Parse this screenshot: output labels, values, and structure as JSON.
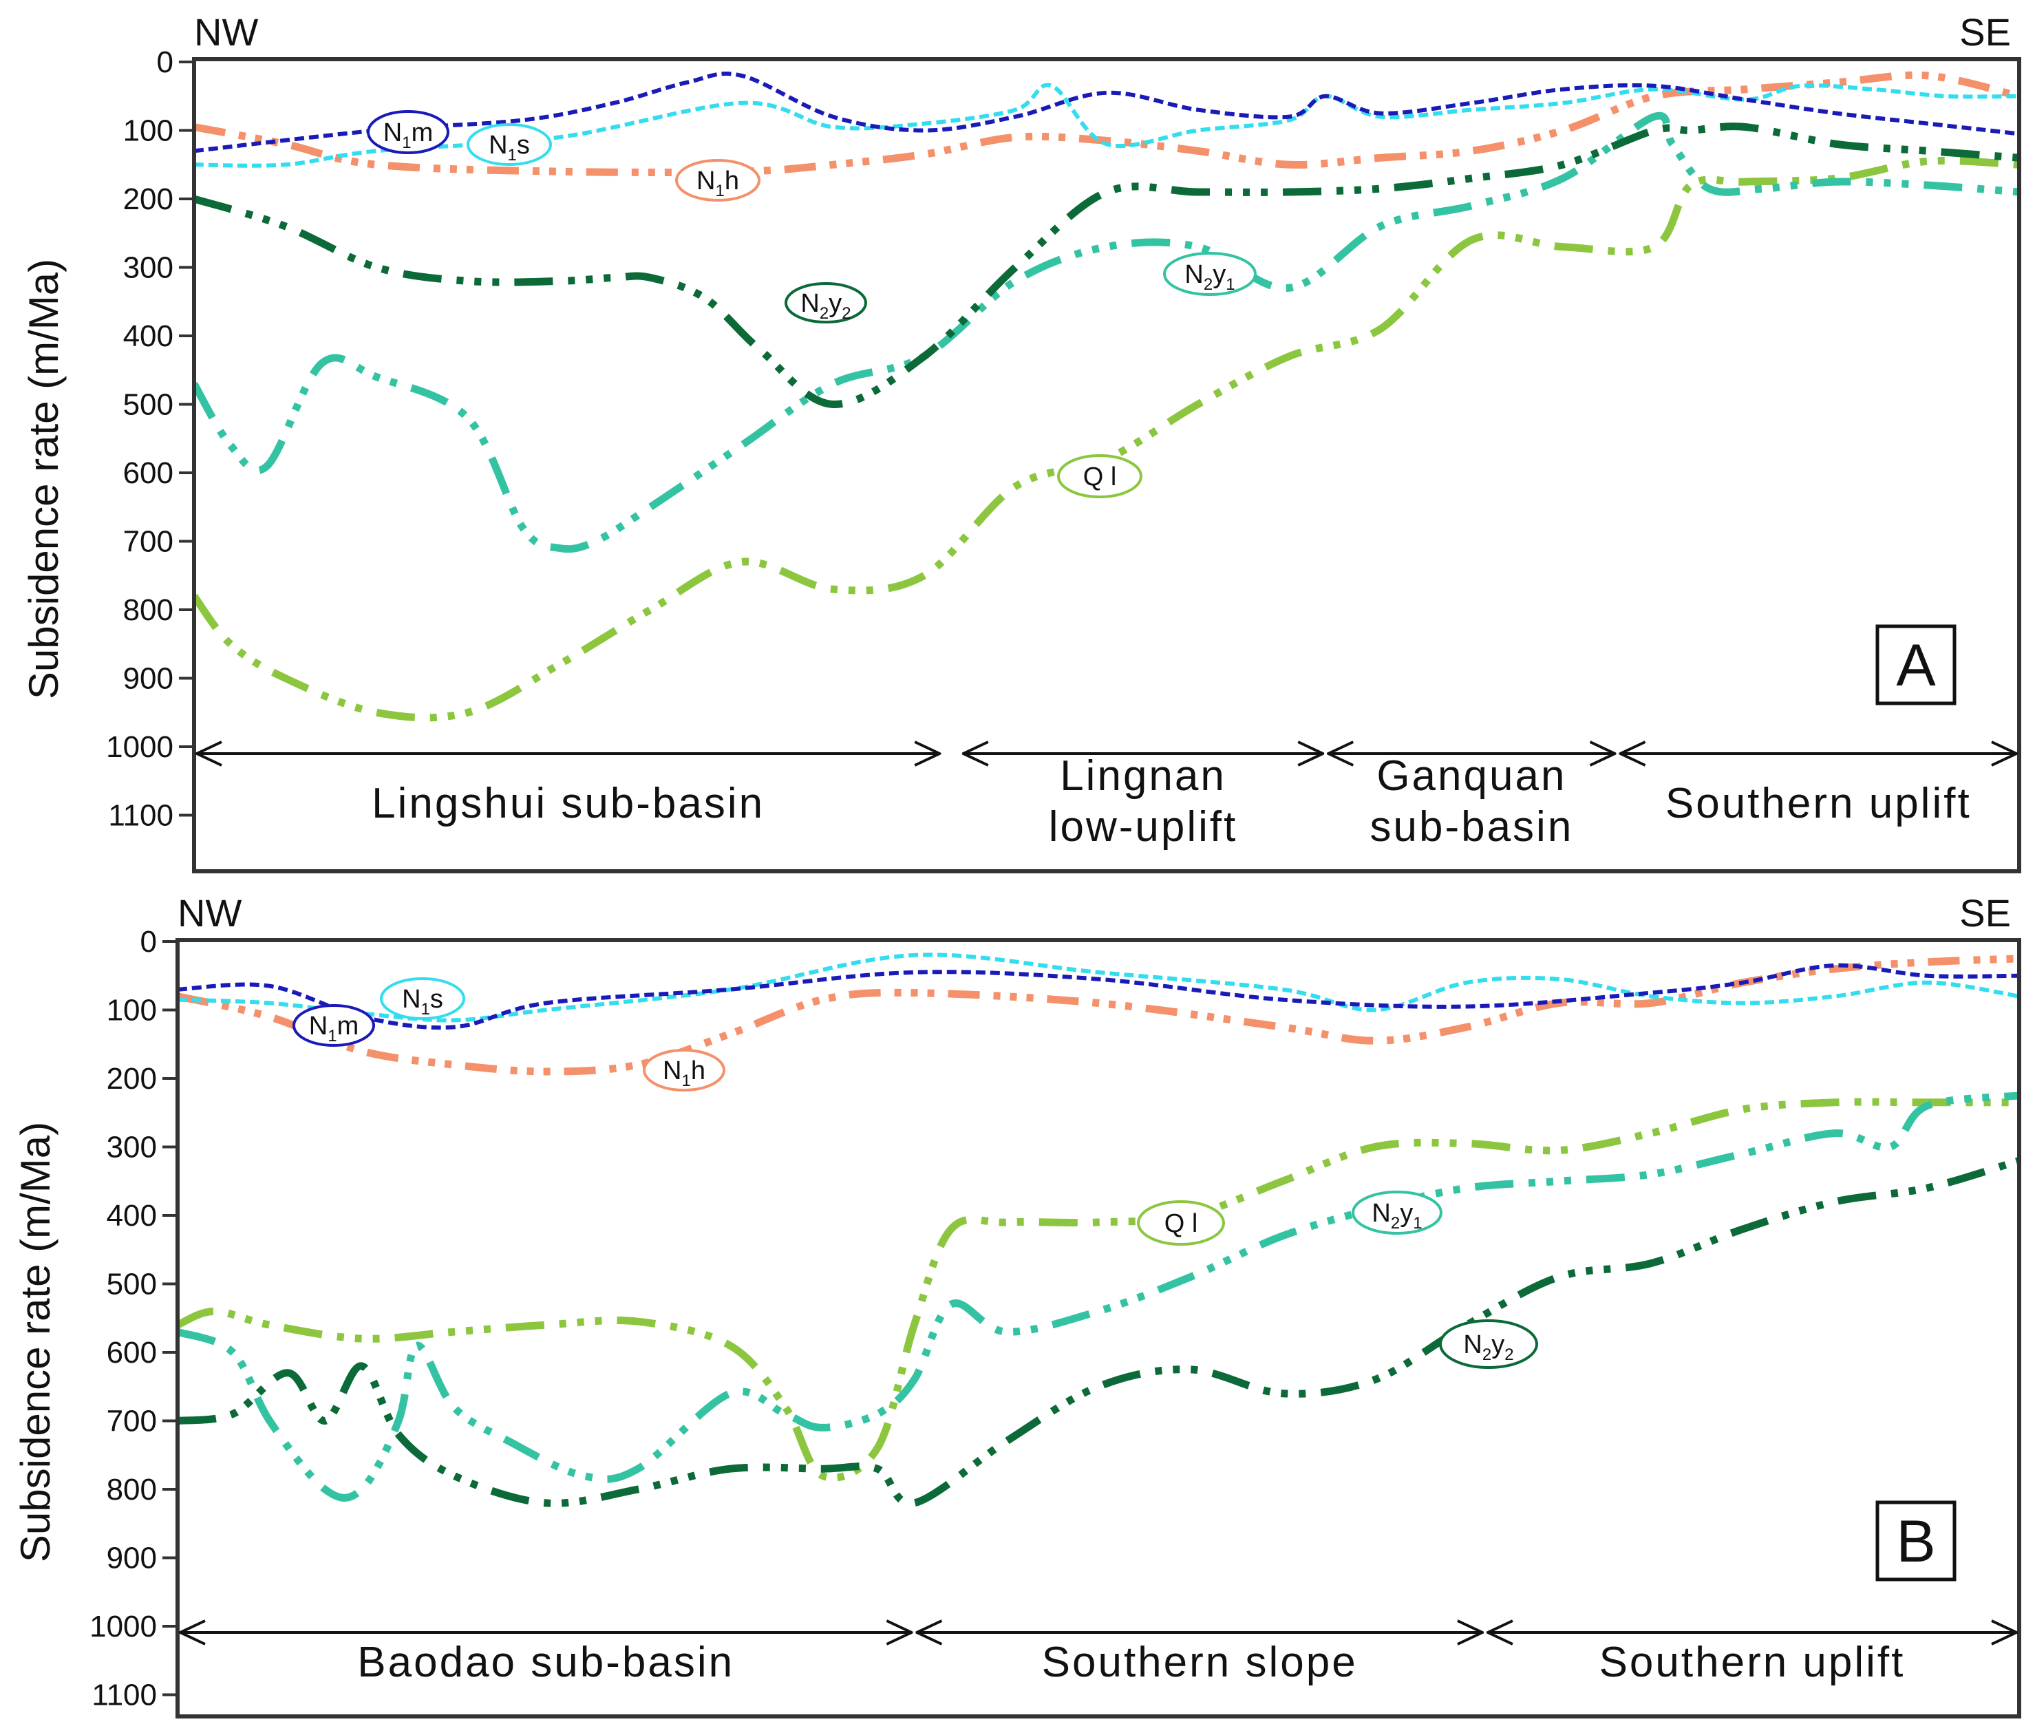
{
  "chart_data": [
    {
      "type": "line",
      "panel": "A",
      "ylabel": "Subsidence rate (m/Ma)",
      "direction_left": "NW",
      "direction_right": "SE",
      "yticks": [
        "0",
        "100",
        "200",
        "300",
        "400",
        "500",
        "600",
        "700",
        "800",
        "900",
        "1000",
        "1100"
      ],
      "ylim": [
        0,
        1150
      ],
      "x_range": [
        0,
        100
      ],
      "regions": [
        {
          "name": "Lingshui sub-basin",
          "lines": [
            "Lingshui sub-basin"
          ],
          "from": 0,
          "to": 41
        },
        {
          "name": "Lingnan low-uplift",
          "lines": [
            "Lingnan",
            "low-uplift"
          ],
          "from": 42,
          "to": 62
        },
        {
          "name": "Ganquan sub-basin",
          "lines": [
            "Ganquan",
            "sub-basin"
          ],
          "from": 62,
          "to": 78
        },
        {
          "name": "Southern uplift",
          "lines": [
            "Southern uplift"
          ],
          "from": 78,
          "to": 100
        }
      ],
      "series": [
        {
          "name": "N1m",
          "color": "#1a1ab8",
          "tag": {
            "main": "N",
            "sub": "1",
            "rest": "m",
            "sub2": ""
          },
          "x": [
            0,
            10,
            18,
            23,
            27,
            30,
            35,
            40,
            45,
            50,
            55,
            60,
            62,
            65,
            70,
            75,
            80,
            85,
            90,
            95,
            100
          ],
          "y": [
            130,
            100,
            85,
            60,
            30,
            20,
            80,
            100,
            80,
            45,
            70,
            80,
            50,
            75,
            60,
            40,
            35,
            55,
            75,
            90,
            105
          ]
        },
        {
          "name": "N1s",
          "color": "#33ddee",
          "tag": {
            "main": "N",
            "sub": "1",
            "rest": "s",
            "sub2": ""
          },
          "x": [
            0,
            5,
            10,
            20,
            30,
            35,
            40,
            45,
            47,
            50,
            55,
            60,
            62,
            65,
            70,
            75,
            80,
            85,
            88,
            92,
            96,
            100
          ],
          "y": [
            150,
            150,
            130,
            110,
            60,
            95,
            90,
            70,
            35,
            120,
            100,
            85,
            50,
            80,
            70,
            60,
            40,
            55,
            35,
            40,
            50,
            50
          ]
        },
        {
          "name": "N1h",
          "color": "#f4906a",
          "tag": {
            "main": "N",
            "sub": "1",
            "rest": "h",
            "sub2": ""
          },
          "x": [
            0,
            5,
            10,
            20,
            30,
            35,
            40,
            45,
            50,
            55,
            60,
            65,
            70,
            75,
            80,
            85,
            90,
            95,
            100
          ],
          "y": [
            95,
            120,
            150,
            160,
            160,
            150,
            135,
            110,
            115,
            130,
            150,
            140,
            130,
            100,
            50,
            40,
            30,
            20,
            50
          ]
        },
        {
          "name": "N2y2",
          "color": "#0b6a38",
          "tag": {
            "main": "N",
            "sub": "2",
            "rest": "y",
            "sub2": "2"
          },
          "x": [
            0,
            5,
            10,
            15,
            20,
            23,
            25,
            28,
            31,
            35,
            40,
            45,
            50,
            55,
            60,
            65,
            70,
            75,
            80,
            82,
            85,
            90,
            95,
            100
          ],
          "y": [
            200,
            240,
            300,
            320,
            320,
            315,
            315,
            345,
            420,
            500,
            430,
            300,
            190,
            190,
            190,
            185,
            170,
            150,
            100,
            100,
            95,
            120,
            130,
            140
          ]
        },
        {
          "name": "N2y1",
          "color": "#33c3a3",
          "tag": {
            "main": "N",
            "sub": "2",
            "rest": "y",
            "sub2": "1"
          },
          "x": [
            0,
            2,
            4,
            7,
            10,
            15,
            18,
            20,
            22,
            25,
            30,
            35,
            40,
            45,
            50,
            55,
            60,
            65,
            70,
            75,
            80,
            81,
            83,
            86,
            90,
            95,
            100
          ],
          "y": [
            470,
            560,
            590,
            440,
            460,
            520,
            680,
            710,
            700,
            650,
            560,
            470,
            430,
            320,
            270,
            270,
            330,
            240,
            210,
            170,
            80,
            120,
            185,
            185,
            175,
            180,
            190
          ]
        },
        {
          "name": "Ql",
          "color": "#8cc63f",
          "tag": {
            "main": "Ql",
            "sub": "",
            "rest": "",
            "sub2": ""
          },
          "x": [
            0,
            2,
            5,
            10,
            15,
            20,
            25,
            30,
            35,
            40,
            45,
            50,
            55,
            60,
            65,
            70,
            75,
            80,
            82,
            85,
            90,
            95,
            100
          ],
          "y": [
            780,
            850,
            900,
            950,
            950,
            880,
            800,
            730,
            770,
            750,
            620,
            580,
            500,
            430,
            390,
            260,
            270,
            270,
            180,
            175,
            170,
            145,
            150
          ]
        }
      ]
    },
    {
      "type": "line",
      "panel": "B",
      "ylabel": "Subsidence rate (m/Ma)",
      "direction_left": "NW",
      "direction_right": "SE",
      "yticks": [
        "0",
        "100",
        "200",
        "300",
        "400",
        "500",
        "600",
        "700",
        "800",
        "900",
        "1000",
        "1100"
      ],
      "ylim": [
        0,
        1150
      ],
      "x_range": [
        0,
        100
      ],
      "regions": [
        {
          "name": "Baodao sub-basin",
          "lines": [
            "Baodao sub-basin"
          ],
          "from": 0,
          "to": 40
        },
        {
          "name": "Southern slope",
          "lines": [
            "Southern slope"
          ],
          "from": 40,
          "to": 71
        },
        {
          "name": "Southern uplift",
          "lines": [
            "Southern uplift"
          ],
          "from": 71,
          "to": 100
        }
      ],
      "series": [
        {
          "name": "N1m",
          "color": "#1a1ab8",
          "tag": {
            "main": "N",
            "sub": "1",
            "rest": "m",
            "sub2": ""
          },
          "x": [
            0,
            5,
            10,
            15,
            20,
            30,
            40,
            50,
            60,
            70,
            80,
            85,
            90,
            95,
            100
          ],
          "y": [
            70,
            65,
            110,
            125,
            90,
            70,
            45,
            55,
            85,
            95,
            75,
            60,
            35,
            50,
            50
          ]
        },
        {
          "name": "N1s",
          "color": "#33ddee",
          "tag": {
            "main": "N",
            "sub": "1",
            "rest": "s",
            "sub2": ""
          },
          "x": [
            0,
            5,
            10,
            15,
            20,
            30,
            40,
            50,
            60,
            65,
            70,
            75,
            80,
            85,
            90,
            95,
            100
          ],
          "y": [
            85,
            90,
            105,
            115,
            100,
            70,
            20,
            45,
            70,
            100,
            60,
            55,
            80,
            90,
            80,
            60,
            80
          ]
        },
        {
          "name": "N1h",
          "color": "#f4906a",
          "tag": {
            "main": "N",
            "sub": "1",
            "rest": "h",
            "sub2": ""
          },
          "x": [
            0,
            5,
            10,
            15,
            20,
            25,
            30,
            35,
            40,
            50,
            60,
            65,
            70,
            75,
            80,
            85,
            90,
            95,
            100
          ],
          "y": [
            80,
            110,
            160,
            180,
            190,
            180,
            135,
            85,
            75,
            90,
            125,
            145,
            125,
            90,
            90,
            60,
            40,
            30,
            25
          ]
        },
        {
          "name": "N2y2",
          "color": "#0b6a38",
          "tag": {
            "main": "N",
            "sub": "2",
            "rest": "y",
            "sub2": "2"
          },
          "x": [
            0,
            3,
            6,
            8,
            10,
            12,
            15,
            20,
            25,
            30,
            35,
            38,
            40,
            45,
            50,
            55,
            60,
            65,
            70,
            75,
            80,
            85,
            90,
            95,
            100
          ],
          "y": [
            700,
            690,
            630,
            700,
            620,
            720,
            780,
            820,
            800,
            770,
            770,
            770,
            820,
            730,
            650,
            625,
            660,
            640,
            560,
            490,
            470,
            420,
            380,
            360,
            320
          ]
        },
        {
          "name": "N2y1",
          "color": "#33c3a3",
          "tag": {
            "main": "N",
            "sub": "2",
            "rest": "y",
            "sub2": "1"
          },
          "x": [
            0,
            3,
            5,
            8,
            10,
            12,
            13,
            15,
            18,
            22,
            25,
            30,
            33,
            35,
            38,
            40,
            42,
            45,
            50,
            55,
            60,
            65,
            70,
            75,
            80,
            85,
            90,
            93,
            95,
            100
          ],
          "y": [
            570,
            600,
            700,
            800,
            800,
            700,
            590,
            680,
            730,
            780,
            770,
            660,
            690,
            710,
            690,
            640,
            530,
            570,
            540,
            490,
            430,
            390,
            360,
            350,
            340,
            310,
            280,
            300,
            240,
            225
          ]
        },
        {
          "name": "Ql",
          "color": "#8cc63f",
          "tag": {
            "main": "Ql",
            "sub": "",
            "rest": "",
            "sub2": ""
          },
          "x": [
            0,
            2,
            5,
            10,
            15,
            20,
            25,
            30,
            33,
            35,
            38,
            40,
            42,
            45,
            50,
            55,
            60,
            65,
            70,
            75,
            80,
            85,
            90,
            95,
            100
          ],
          "y": [
            560,
            540,
            560,
            580,
            570,
            560,
            555,
            590,
            680,
            780,
            740,
            560,
            420,
            410,
            410,
            400,
            350,
            300,
            295,
            305,
            280,
            245,
            235,
            235,
            235
          ]
        }
      ]
    }
  ]
}
